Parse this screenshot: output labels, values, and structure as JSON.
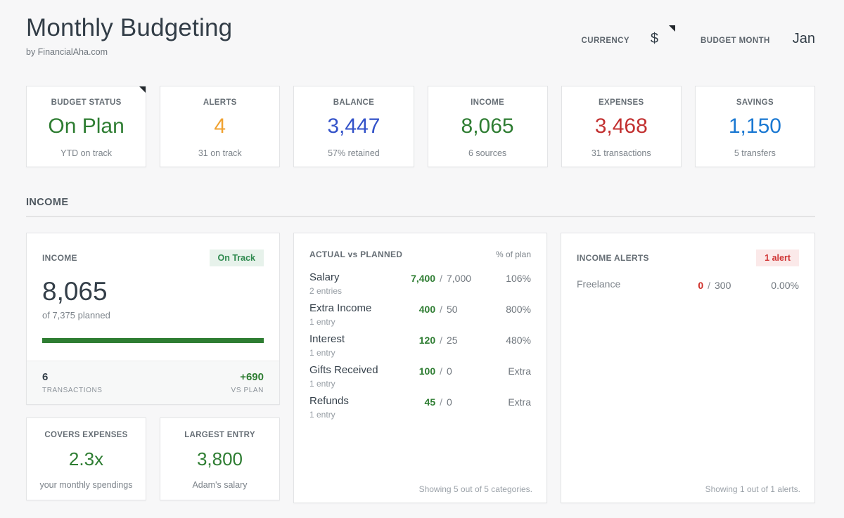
{
  "page": {
    "title": "Monthly Budgeting",
    "subtitle": "by FinancialAha.com"
  },
  "header_controls": {
    "currency_label": "CURRENCY",
    "currency_value": "$",
    "budget_month_label": "BUDGET MONTH",
    "budget_month_value": "Jan"
  },
  "colors": {
    "green": "#2e7d32",
    "orange": "#f0a231",
    "blue": "#3352c9",
    "light_blue": "#1a78d2",
    "red": "#c23030",
    "alert_red": "#ce2d27",
    "badge_green_bg": "#e7f2eb",
    "badge_green_text": "#2f8a4f",
    "badge_red_bg": "#fbe9e9",
    "badge_red_text": "#d03434",
    "dark_text": "#333e48"
  },
  "stat_cards": [
    {
      "label": "BUDGET STATUS",
      "value": "On Plan",
      "sub": "YTD on track",
      "value_color": "#2e7d32"
    },
    {
      "label": "ALERTS",
      "value": "4",
      "sub": "31 on track",
      "value_color": "#f0a231"
    },
    {
      "label": "BALANCE",
      "value": "3,447",
      "sub": "57% retained",
      "value_color": "#3352c9"
    },
    {
      "label": "INCOME",
      "value": "8,065",
      "sub": "6 sources",
      "value_color": "#2e7d32"
    },
    {
      "label": "EXPENSES",
      "value": "3,468",
      "sub": "31 transactions",
      "value_color": "#c23030"
    },
    {
      "label": "SAVINGS",
      "value": "1,150",
      "sub": "5 transfers",
      "value_color": "#1a78d2"
    }
  ],
  "section": {
    "title": "INCOME"
  },
  "income_card": {
    "label": "INCOME",
    "badge": "On Track",
    "value": "8,065",
    "sub": "of 7,375 planned",
    "progress_width": "100%",
    "footer": {
      "left_value": "6",
      "left_label": "TRANSACTIONS",
      "right_value": "+690",
      "right_label": "VS PLAN"
    }
  },
  "mini_cards": [
    {
      "label": "COVERS EXPENSES",
      "value": "2.3x",
      "sub": "your monthly spendings"
    },
    {
      "label": "LARGEST ENTRY",
      "value": "3,800",
      "sub": "Adam's salary"
    }
  ],
  "actual_vs_planned": {
    "title": "ACTUAL vs PLANNED",
    "col_header": "% of plan",
    "separator": "/",
    "rows": [
      {
        "name": "Salary",
        "entries": "2 entries",
        "actual": "7,400",
        "planned": "7,000",
        "pct": "106%"
      },
      {
        "name": "Extra Income",
        "entries": "1 entry",
        "actual": "400",
        "planned": "50",
        "pct": "800%"
      },
      {
        "name": "Interest",
        "entries": "1 entry",
        "actual": "120",
        "planned": "25",
        "pct": "480%"
      },
      {
        "name": "Gifts Received",
        "entries": "1 entry",
        "actual": "100",
        "planned": "0",
        "pct": "Extra"
      },
      {
        "name": "Refunds",
        "entries": "1 entry",
        "actual": "45",
        "planned": "0",
        "pct": "Extra"
      }
    ],
    "footer": "Showing 5 out of 5 categories."
  },
  "income_alerts": {
    "title": "INCOME ALERTS",
    "badge": "1 alert",
    "separator": "/",
    "rows": [
      {
        "name": "Freelance",
        "actual": "0",
        "planned": "300",
        "pct": "0.00%"
      }
    ],
    "footer": "Showing 1 out of 1 alerts."
  }
}
